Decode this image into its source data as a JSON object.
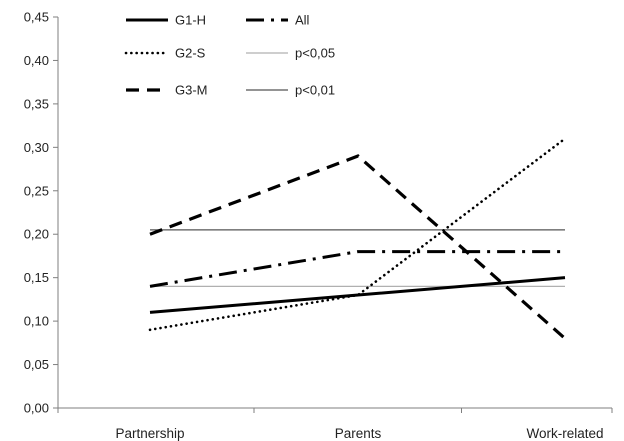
{
  "chart_data": {
    "type": "line",
    "title": "",
    "xlabel": "",
    "ylabel": "",
    "categories": [
      "Partnership",
      "Parents",
      "Work-related"
    ],
    "ylim": [
      0,
      0.45
    ],
    "yticks": [
      "0,00",
      "0,05",
      "0,10",
      "0,15",
      "0,20",
      "0,25",
      "0,30",
      "0,35",
      "0,40",
      "0,45"
    ],
    "grid": false,
    "legend_position": "top-left",
    "series": [
      {
        "name": "G1-H",
        "values": [
          0.11,
          0.13,
          0.15
        ],
        "style": "solid-thick",
        "color": "#000000"
      },
      {
        "name": "G2-S",
        "values": [
          0.09,
          0.13,
          0.31
        ],
        "style": "dotted",
        "color": "#000000"
      },
      {
        "name": "G3-M",
        "values": [
          0.2,
          0.29,
          0.08
        ],
        "style": "dashed",
        "color": "#000000"
      },
      {
        "name": "All",
        "values": [
          0.14,
          0.18,
          0.18
        ],
        "style": "dash-dot",
        "color": "#000000"
      }
    ],
    "reference_lines": [
      {
        "name": "p<0,05",
        "value": 0.14,
        "color": "#b0b0b0"
      },
      {
        "name": "p<0,01",
        "value": 0.205,
        "color": "#555555"
      }
    ]
  }
}
